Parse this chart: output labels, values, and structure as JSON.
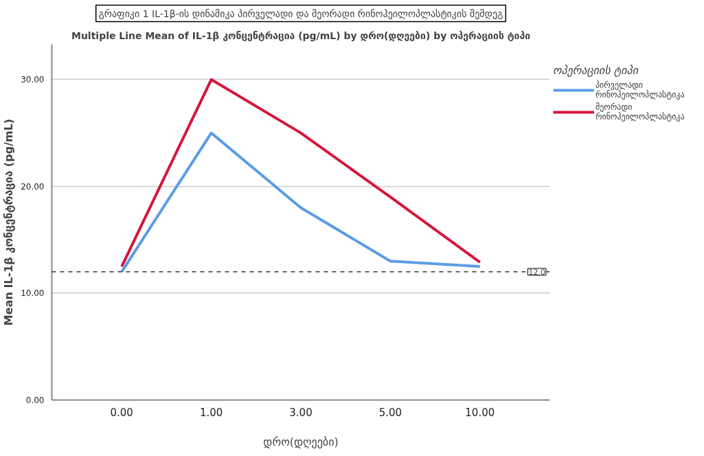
{
  "chart_data": {
    "type": "line",
    "title": "გრაფიკი 1 IL-1β-ის დინამიკა პირველადი და მეორადი რინოჰეილოპლასტიკის შემდეგ",
    "subtitle": "Multiple Line Mean of IL-1β კონცენტრაცია (pg/mL) by დრო(დღეები) by ოპერაციის ტიპი",
    "xlabel": "დრო(დღეები)",
    "ylabel": "Mean IL-1β კონცენტრაცია (pg/mL)",
    "legend_title": "ოპერაციის ტიპი",
    "categories": [
      "0.00",
      "1.00",
      "3.00",
      "5.00",
      "10.00"
    ],
    "series": [
      {
        "name": "პირველადი რინოჰეილოპლასტიკა",
        "color": "#5b9ce6",
        "values": [
          12.0,
          25.0,
          18.0,
          13.0,
          12.5
        ]
      },
      {
        "name": "მეორადი რინოჰეილოპლასტიკა",
        "color": "#d4163c",
        "values": [
          12.5,
          30.0,
          25.0,
          19.0,
          12.9
        ]
      }
    ],
    "ylim": [
      0,
      33.3
    ],
    "yticks": [
      {
        "value": 0,
        "label": "0.00"
      },
      {
        "value": 10,
        "label": "10.00"
      },
      {
        "value": 20,
        "label": "20.00"
      },
      {
        "value": 30,
        "label": "30.00"
      }
    ],
    "ref_lines": [
      {
        "axis": "y",
        "value": 12.0,
        "label": "12.0",
        "color": "#333333",
        "line_style": "dashed"
      }
    ],
    "grid": "y",
    "legend": "right",
    "line_style": "solid"
  }
}
